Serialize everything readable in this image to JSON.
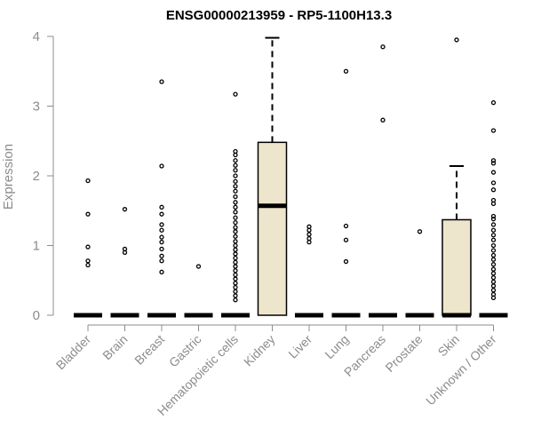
{
  "chart_data": {
    "type": "box",
    "title": "ENSG00000213959 - RP5-1100H13.3",
    "xlabel": "",
    "ylabel": "Expression",
    "ylim": [
      0,
      4
    ],
    "yticks": [
      0,
      1,
      2,
      3,
      4
    ],
    "box_fill": "#ede6cc",
    "categories": [
      "Bladder",
      "Brain",
      "Breast",
      "Gastric",
      "Hematopoietic cells",
      "Kidney",
      "Liver",
      "Lung",
      "Pancreas",
      "Prostate",
      "Skin",
      "Unknown / Other"
    ],
    "boxes": [
      {
        "q1": 0,
        "median": 0,
        "q3": 0,
        "whisker_low": 0,
        "whisker_high": 0,
        "outliers": [
          1.93,
          1.45,
          0.98,
          0.78,
          0.72
        ]
      },
      {
        "q1": 0,
        "median": 0,
        "q3": 0,
        "whisker_low": 0,
        "whisker_high": 0,
        "outliers": [
          1.52,
          0.95,
          0.9
        ]
      },
      {
        "q1": 0,
        "median": 0,
        "q3": 0,
        "whisker_low": 0,
        "whisker_high": 0,
        "outliers": [
          3.35,
          2.14,
          1.55,
          1.45,
          1.3,
          1.22,
          1.12,
          1.05,
          0.95,
          0.85,
          0.78,
          0.62
        ]
      },
      {
        "q1": 0,
        "median": 0,
        "q3": 0,
        "whisker_low": 0,
        "whisker_high": 0,
        "outliers": [
          0.7
        ]
      },
      {
        "q1": 0,
        "median": 0,
        "q3": 0,
        "whisker_low": 0,
        "whisker_high": 0,
        "outliers": [
          3.17,
          2.35,
          2.3,
          2.22,
          2.15,
          2.08,
          2.0,
          1.92,
          1.85,
          1.78,
          1.7,
          1.62,
          1.55,
          1.48,
          1.4,
          1.33,
          1.26,
          1.2,
          1.13,
          1.06,
          1.0,
          0.94,
          0.88,
          0.82,
          0.76,
          0.7,
          0.64,
          0.58,
          0.52,
          0.46,
          0.4,
          0.34,
          0.28,
          0.22
        ]
      },
      {
        "q1": 0,
        "median": 1.57,
        "q3": 2.48,
        "whisker_low": 0,
        "whisker_high": 3.98,
        "outliers": []
      },
      {
        "q1": 0,
        "median": 0,
        "q3": 0,
        "whisker_low": 0,
        "whisker_high": 0,
        "outliers": [
          1.27,
          1.22,
          1.16,
          1.1,
          1.05
        ]
      },
      {
        "q1": 0,
        "median": 0,
        "q3": 0,
        "whisker_low": 0,
        "whisker_high": 0,
        "outliers": [
          3.5,
          1.28,
          1.08,
          0.77
        ]
      },
      {
        "q1": 0,
        "median": 0,
        "q3": 0,
        "whisker_low": 0,
        "whisker_high": 0,
        "outliers": [
          3.85,
          2.8
        ]
      },
      {
        "q1": 0,
        "median": 0,
        "q3": 0,
        "whisker_low": 0,
        "whisker_high": 0,
        "outliers": [
          1.2
        ]
      },
      {
        "q1": 0,
        "median": 0,
        "q3": 1.37,
        "whisker_low": 0,
        "whisker_high": 2.14,
        "outliers": [
          3.95
        ]
      },
      {
        "q1": 0,
        "median": 0,
        "q3": 0,
        "whisker_low": 0,
        "whisker_high": 0,
        "outliers": [
          3.05,
          2.65,
          2.22,
          2.18,
          2.05,
          1.9,
          1.8,
          1.65,
          1.6,
          1.42,
          1.38,
          1.3,
          1.22,
          1.15,
          1.08,
          1.0,
          0.93,
          0.86,
          0.8,
          0.73,
          0.66,
          0.6,
          0.54,
          0.48,
          0.42,
          0.36,
          0.3,
          0.25
        ]
      }
    ]
  }
}
